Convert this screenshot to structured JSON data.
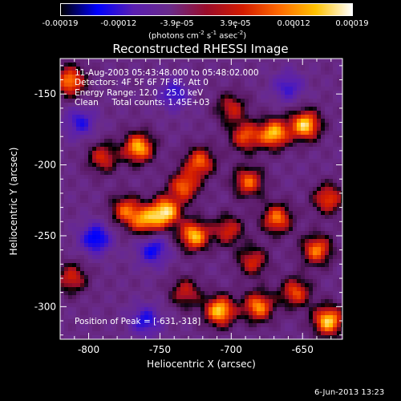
{
  "colorbar": {
    "tick_labels": [
      "-0.00019",
      "-0.00012",
      "-3.9e-05",
      "3.9e-05",
      "0.00012",
      "0.00019"
    ],
    "units_text": "(photons cm",
    "units_sup1": "-2",
    "units_mid": " s",
    "units_sup2": "-1",
    "units_mid2": " asec",
    "units_sup3": "-2",
    "units_end": ")",
    "gradient_colors": [
      "#000000",
      "#0000ff",
      "#5a1fb0",
      "#6a2b8a",
      "#9a0d2a",
      "#d41b00",
      "#ff6a00",
      "#ffc200",
      "#ffffff"
    ]
  },
  "chart_data": {
    "type": "heatmap",
    "title": "Reconstructed RHESSI Image",
    "xlabel": "Heliocentric X (arcsec)",
    "ylabel": "Heliocentric Y (arcsec)",
    "xlim": [
      -820,
      -622
    ],
    "ylim": [
      -323,
      -125
    ],
    "xticks": [
      -800,
      -750,
      -700,
      -650
    ],
    "yticks": [
      -150,
      -200,
      -250,
      -300
    ],
    "xtick_labels": [
      "-800",
      "-750",
      "-700",
      "-650"
    ],
    "ytick_labels": [
      "-150",
      "-200",
      "-250",
      "-300"
    ],
    "annotations": [
      "11-Aug-2003 05:43:48.000 to 05:48:02.000",
      "Detectors: 4F 5F 6F 7F 8F, Att 0",
      "Energy Range: 12.0 - 25.0 keV",
      "Clean     Total counts: 1.45E+03"
    ],
    "peak_label": "Position of Peak = [-631,-318]",
    "colorbar_range": [
      -0.00019,
      0.00019
    ],
    "blobs": [
      {
        "x": -813,
        "y": -141,
        "v": 0.85
      },
      {
        "x": -765,
        "y": -188,
        "v": 0.95
      },
      {
        "x": -790,
        "y": -195,
        "v": 0.6
      },
      {
        "x": -774,
        "y": -232,
        "v": 0.7
      },
      {
        "x": -760,
        "y": -240,
        "v": 0.75
      },
      {
        "x": -700,
        "y": -160,
        "v": 0.55
      },
      {
        "x": -690,
        "y": -180,
        "v": 0.7
      },
      {
        "x": -670,
        "y": -178,
        "v": 0.95
      },
      {
        "x": -648,
        "y": -172,
        "v": 1.0
      },
      {
        "x": -722,
        "y": -198,
        "v": 0.75
      },
      {
        "x": -733,
        "y": -215,
        "v": 0.75
      },
      {
        "x": -746,
        "y": -233,
        "v": 1.0
      },
      {
        "x": -726,
        "y": -250,
        "v": 0.95
      },
      {
        "x": -702,
        "y": -246,
        "v": 0.6
      },
      {
        "x": -688,
        "y": -212,
        "v": 0.75
      },
      {
        "x": -668,
        "y": -238,
        "v": 0.8
      },
      {
        "x": -632,
        "y": -224,
        "v": 0.7
      },
      {
        "x": -640,
        "y": -260,
        "v": 0.8
      },
      {
        "x": -685,
        "y": -268,
        "v": 0.6
      },
      {
        "x": -812,
        "y": -280,
        "v": 0.6
      },
      {
        "x": -732,
        "y": -290,
        "v": 0.55
      },
      {
        "x": -708,
        "y": -303,
        "v": 1.0
      },
      {
        "x": -681,
        "y": -300,
        "v": 0.85
      },
      {
        "x": -655,
        "y": -290,
        "v": 0.7
      },
      {
        "x": -632,
        "y": -310,
        "v": 1.0
      },
      {
        "x": -795,
        "y": -252,
        "v": -0.7
      },
      {
        "x": -755,
        "y": -260,
        "v": -0.6
      },
      {
        "x": -806,
        "y": -170,
        "v": -0.5
      },
      {
        "x": -740,
        "y": -150,
        "v": -0.5
      },
      {
        "x": -760,
        "y": -310,
        "v": -0.55
      },
      {
        "x": -660,
        "y": -145,
        "v": -0.45
      }
    ]
  },
  "footer": {
    "date": "6-Jun-2013 13:23"
  }
}
